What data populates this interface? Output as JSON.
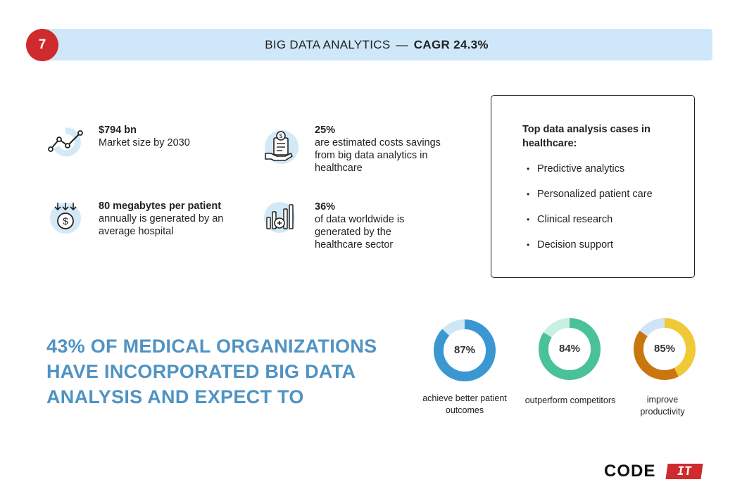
{
  "header": {
    "page_number": "7",
    "title": "BIG DATA ANALYTICS",
    "separator": "—",
    "cagr": "CAGR 24.3%"
  },
  "stats": [
    {
      "icon": "line-chart-icon",
      "bold": "$794 bn",
      "text": "Market size by 2030"
    },
    {
      "icon": "cost-savings-icon",
      "bold": "25%",
      "text": "are estimated costs savings from big data analytics in healthcare"
    },
    {
      "icon": "dollar-download-icon",
      "bold": "80 megabytes per patient",
      "text": " annually is generated by an average hospital"
    },
    {
      "icon": "bar-chart-icon",
      "bold": "36%",
      "text": "of data worldwide is generated by the healthcare sector"
    }
  ],
  "cases": {
    "title": "Top data analysis cases in healthcare:",
    "items": [
      "Predictive analytics",
      "Personalized patient care",
      "Clinical research",
      "Decision support"
    ]
  },
  "headline": "43% OF MEDICAL ORGANIZATIONS HAVE INCORPORATED BIG DATA ANALYSIS AND EXPECT TO",
  "donuts": [
    {
      "value": 87,
      "label": "87%",
      "caption": "achieve better patient outcomes",
      "color": "#3a97d2",
      "track": "#cde7f7"
    },
    {
      "value": 84,
      "label": "84%",
      "caption": "outperform competitors",
      "color": "#49c19a",
      "track": "#c9efe3"
    },
    {
      "value": 85,
      "label": "85%",
      "caption": "improve productivity",
      "color": "#f0c935",
      "color2": "#c8760d",
      "track": "#cfe5f6"
    }
  ],
  "logo": {
    "word": "CODE",
    "badge": "IT"
  },
  "colors": {
    "accent_red": "#cf2a2e",
    "header_bg": "#cfe8f9",
    "headline_blue": "#4f93c3",
    "icon_bg": "#d3e9f8"
  }
}
